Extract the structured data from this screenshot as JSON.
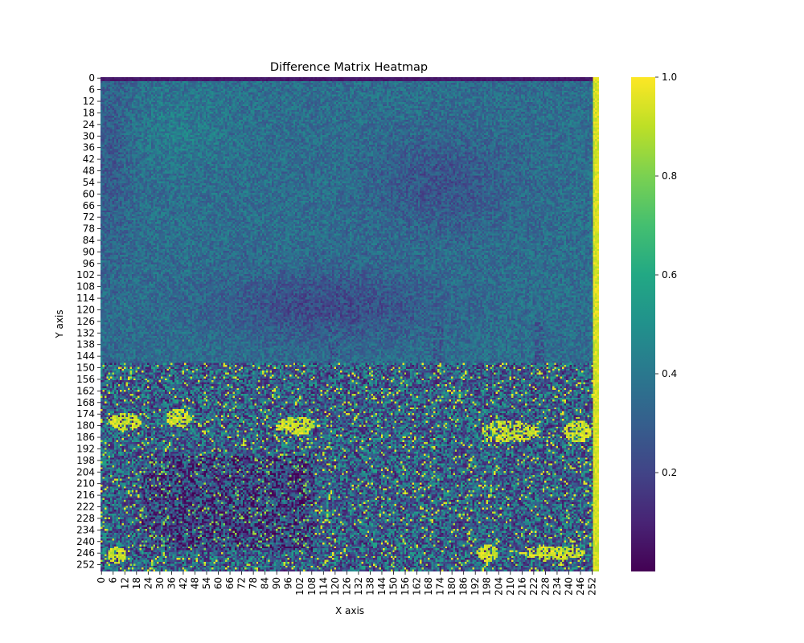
{
  "chart_data": {
    "type": "heatmap",
    "title": "Difference Matrix Heatmap",
    "xlabel": "X axis",
    "ylabel": "Y axis",
    "rows": 256,
    "cols": 256,
    "x_tick_labels": [
      "0",
      "6",
      "12",
      "18",
      "24",
      "30",
      "36",
      "42",
      "48",
      "54",
      "60",
      "66",
      "72",
      "78",
      "84",
      "90",
      "96",
      "102",
      "108",
      "114",
      "120",
      "126",
      "132",
      "138",
      "144",
      "150",
      "156",
      "162",
      "168",
      "174",
      "180",
      "186",
      "192",
      "198",
      "204",
      "210",
      "216",
      "222",
      "228",
      "234",
      "240",
      "246",
      "252"
    ],
    "y_tick_labels": [
      "0",
      "6",
      "12",
      "18",
      "24",
      "30",
      "36",
      "42",
      "48",
      "54",
      "60",
      "66",
      "72",
      "78",
      "84",
      "90",
      "96",
      "102",
      "108",
      "114",
      "120",
      "126",
      "132",
      "138",
      "144",
      "150",
      "156",
      "162",
      "168",
      "174",
      "180",
      "186",
      "192",
      "198",
      "204",
      "210",
      "216",
      "222",
      "228",
      "234",
      "240",
      "246",
      "252"
    ],
    "colorbar": {
      "colormap": "viridis",
      "range": [
        0.0,
        1.0
      ],
      "tick_labels": [
        "0.2",
        "0.4",
        "0.6",
        "0.8",
        "1.0"
      ],
      "tick_values": [
        0.2,
        0.4,
        0.6,
        0.8,
        1.0
      ]
    },
    "value_description": "Mostly 0.3-0.5 (teal) background; darker band near rows 100-130; noisy high-contrast region with yellow patches in rows 150-255; last column near 1.0",
    "legend": "none"
  }
}
